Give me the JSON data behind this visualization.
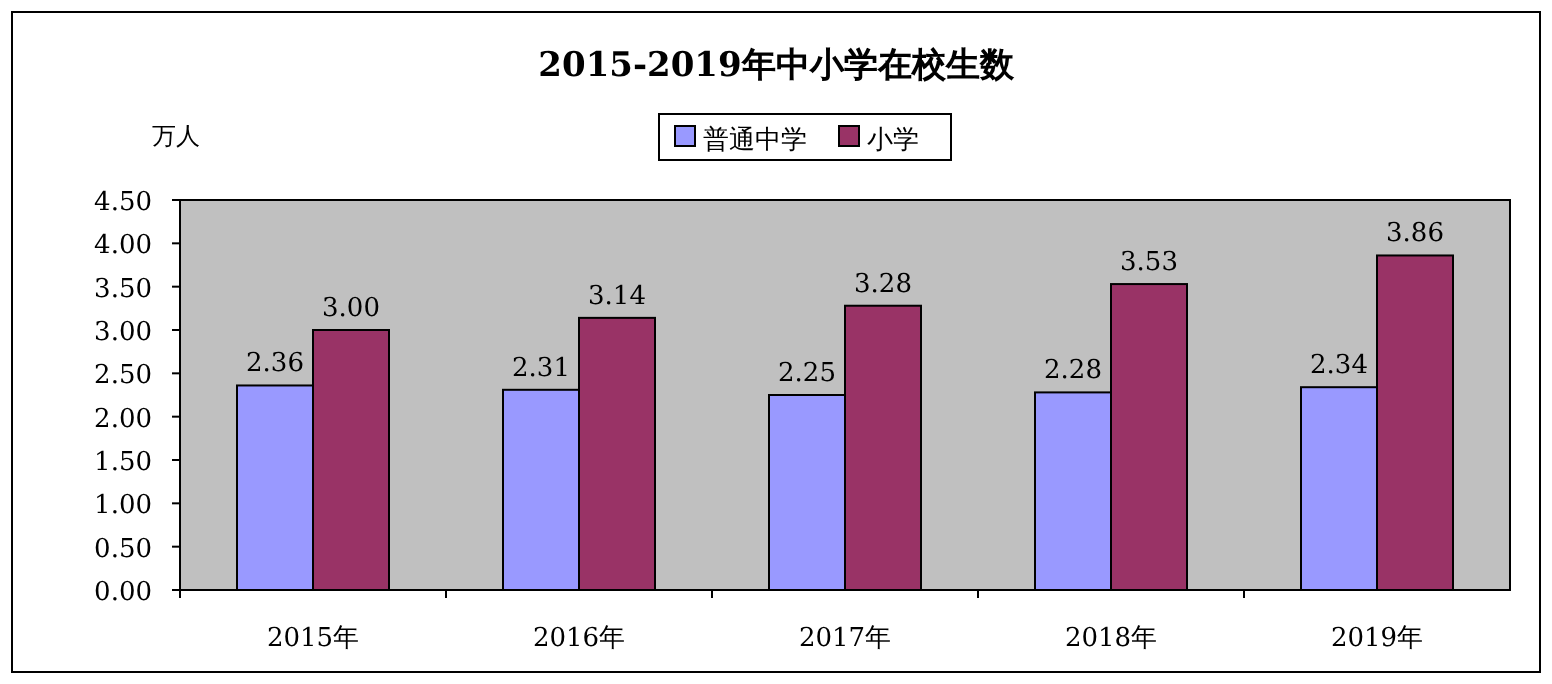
{
  "chart_data": {
    "type": "bar",
    "title": "2015-2019年中小学在校生数",
    "ylabel": "万人",
    "categories": [
      "2015年",
      "2016年",
      "2017年",
      "2018年",
      "2019年"
    ],
    "series": [
      {
        "name": "普通中学",
        "color": "#9999ff",
        "values": [
          2.36,
          2.31,
          2.25,
          2.28,
          2.34
        ],
        "value_labels": [
          "2.36",
          "2.31",
          "2.25",
          "2.28",
          "2.34"
        ]
      },
      {
        "name": "小学",
        "color": "#993366",
        "values": [
          3.0,
          3.14,
          3.28,
          3.53,
          3.86
        ],
        "value_labels": [
          "3.00",
          "3.14",
          "3.28",
          "3.53",
          "3.86"
        ]
      }
    ],
    "ylim": [
      0,
      4.5
    ],
    "yticks": [
      {
        "value": 0,
        "label": "0.00"
      },
      {
        "value": 0.5,
        "label": "0.50"
      },
      {
        "value": 1,
        "label": "1.00"
      },
      {
        "value": 1.5,
        "label": "1.50"
      },
      {
        "value": 2,
        "label": "2.00"
      },
      {
        "value": 2.5,
        "label": "2.50"
      },
      {
        "value": 3,
        "label": "3.00"
      },
      {
        "value": 3.5,
        "label": "3.50"
      },
      {
        "value": 4,
        "label": "4.00"
      },
      {
        "value": 4.5,
        "label": "4.50"
      }
    ],
    "legend": "top",
    "grid": false
  }
}
